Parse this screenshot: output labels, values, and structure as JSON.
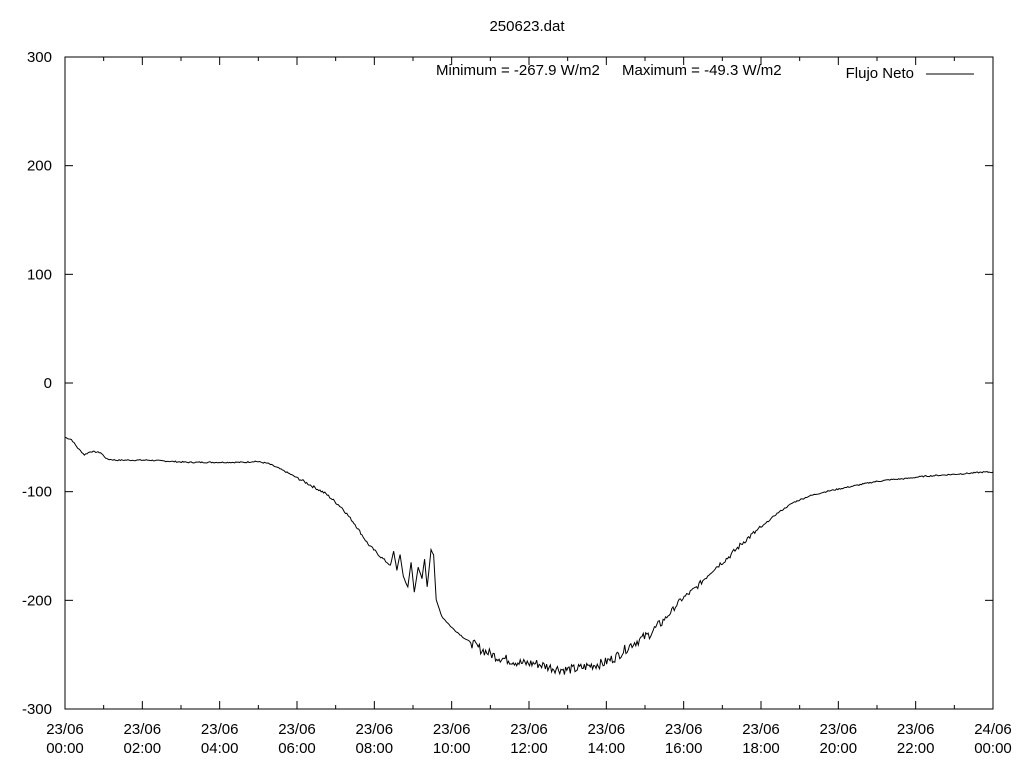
{
  "chart_data": {
    "type": "line",
    "title": "250623.dat",
    "annotation": {
      "minimum": "Minimum = -267.9 W/m2",
      "maximum": "Maximum = -49.3 W/m2"
    },
    "xlabel": "",
    "ylabel": "",
    "ylim": [
      -300,
      300
    ],
    "xlim": [
      "23/06 00:00",
      "24/06 00:00"
    ],
    "x_unit": "hours since 23/06 00:00 (axis shows date/time)",
    "y_ticks": [
      "300",
      "200",
      "100",
      "0",
      "-100",
      "-200",
      "-300"
    ],
    "x_ticks": [
      {
        "date": "23/06",
        "time": "00:00"
      },
      {
        "date": "23/06",
        "time": "02:00"
      },
      {
        "date": "23/06",
        "time": "04:00"
      },
      {
        "date": "23/06",
        "time": "06:00"
      },
      {
        "date": "23/06",
        "time": "08:00"
      },
      {
        "date": "23/06",
        "time": "10:00"
      },
      {
        "date": "23/06",
        "time": "12:00"
      },
      {
        "date": "23/06",
        "time": "14:00"
      },
      {
        "date": "23/06",
        "time": "16:00"
      },
      {
        "date": "23/06",
        "time": "18:00"
      },
      {
        "date": "23/06",
        "time": "20:00"
      },
      {
        "date": "23/06",
        "time": "22:00"
      },
      {
        "date": "24/06",
        "time": "00:00"
      }
    ],
    "legend": {
      "position": "top-right",
      "label": "Flujo Neto"
    },
    "grid": false,
    "series": [
      {
        "name": "Flujo Neto",
        "color": "#000000",
        "points": [
          [
            "23/06 00:00",
            -50
          ],
          [
            "23/06 00:10",
            -52
          ],
          [
            "23/06 00:20",
            -60
          ],
          [
            "23/06 00:30",
            -66
          ],
          [
            "23/06 00:40",
            -63
          ],
          [
            "23/06 00:55",
            -64
          ],
          [
            "23/06 01:05",
            -70
          ],
          [
            "23/06 01:20",
            -71
          ],
          [
            "23/06 01:45",
            -71
          ],
          [
            "23/06 02:10",
            -71
          ],
          [
            "23/06 02:40",
            -72
          ],
          [
            "23/06 03:10",
            -73
          ],
          [
            "23/06 03:40",
            -73
          ],
          [
            "23/06 04:10",
            -73
          ],
          [
            "23/06 04:40",
            -73
          ],
          [
            "23/06 04:55",
            -72
          ],
          [
            "23/06 05:15",
            -74
          ],
          [
            "23/06 05:30",
            -78
          ],
          [
            "23/06 05:50",
            -84
          ],
          [
            "23/06 06:15",
            -92
          ],
          [
            "23/06 06:45",
            -102
          ],
          [
            "23/06 07:10",
            -115
          ],
          [
            "23/06 07:30",
            -130
          ],
          [
            "23/06 07:50",
            -148
          ],
          [
            "23/06 08:10",
            -160
          ],
          [
            "23/06 08:25",
            -168
          ],
          [
            "23/06 08:30",
            -155
          ],
          [
            "23/06 08:35",
            -172
          ],
          [
            "23/06 08:40",
            -158
          ],
          [
            "23/06 08:45",
            -178
          ],
          [
            "23/06 08:52",
            -188
          ],
          [
            "23/06 08:57",
            -165
          ],
          [
            "23/06 09:02",
            -192
          ],
          [
            "23/06 09:08",
            -170
          ],
          [
            "23/06 09:14",
            -180
          ],
          [
            "23/06 09:18",
            -162
          ],
          [
            "23/06 09:22",
            -188
          ],
          [
            "23/06 09:28",
            -153
          ],
          [
            "23/06 09:32",
            -158
          ],
          [
            "23/06 09:36",
            -200
          ],
          [
            "23/06 09:45",
            -215
          ],
          [
            "23/06 10:00",
            -225
          ],
          [
            "23/06 10:20",
            -235
          ],
          [
            "23/06 10:45",
            -245
          ],
          [
            "23/06 11:10",
            -252
          ],
          [
            "23/06 11:30",
            -255
          ],
          [
            "23/06 11:50",
            -258
          ],
          [
            "23/06 12:10",
            -258
          ],
          [
            "23/06 12:35",
            -262
          ],
          [
            "23/06 12:55",
            -264
          ],
          [
            "23/06 13:15",
            -263
          ],
          [
            "23/06 13:35",
            -260
          ],
          [
            "23/06 13:55",
            -258
          ],
          [
            "23/06 14:15",
            -252
          ],
          [
            "23/06 14:40",
            -240
          ],
          [
            "23/06 15:05",
            -232
          ],
          [
            "23/06 15:30",
            -218
          ],
          [
            "23/06 15:55",
            -200
          ],
          [
            "23/06 16:20",
            -188
          ],
          [
            "23/06 16:45",
            -172
          ],
          [
            "23/06 17:10",
            -160
          ],
          [
            "23/06 17:35",
            -145
          ],
          [
            "23/06 18:00",
            -133
          ],
          [
            "23/06 18:25",
            -120
          ],
          [
            "23/06 18:50",
            -110
          ],
          [
            "23/06 19:15",
            -104
          ],
          [
            "23/06 19:40",
            -100
          ],
          [
            "23/06 20:05",
            -97
          ],
          [
            "23/06 20:30",
            -94
          ],
          [
            "23/06 20:55",
            -91
          ],
          [
            "23/06 21:20",
            -89
          ],
          [
            "23/06 21:45",
            -88
          ],
          [
            "23/06 22:10",
            -86
          ],
          [
            "23/06 22:35",
            -85
          ],
          [
            "23/06 23:00",
            -84
          ],
          [
            "23/06 23:25",
            -83
          ],
          [
            "23/06 23:45",
            -82
          ],
          [
            "24/06 00:00",
            -82
          ]
        ]
      }
    ]
  }
}
